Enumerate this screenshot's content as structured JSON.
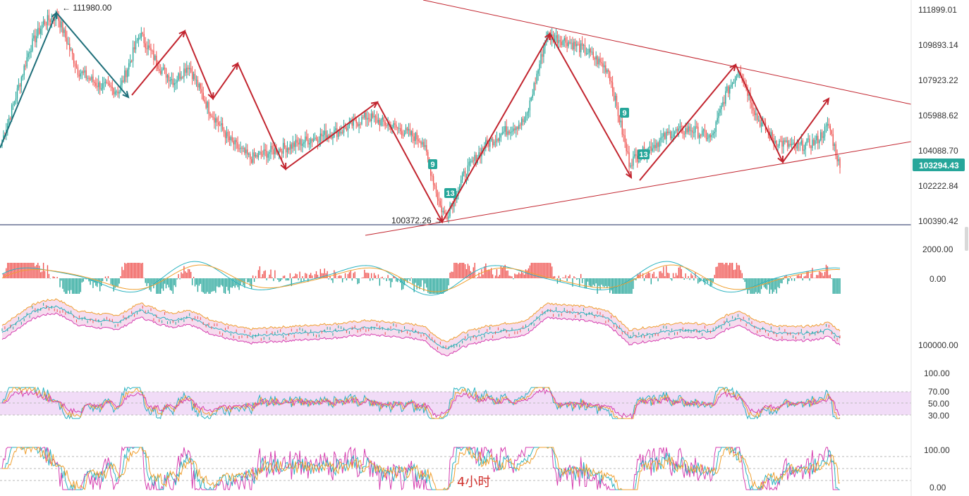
{
  "timeframe_label": "4小时",
  "colors": {
    "up": "#26a69a",
    "down": "#ef5350",
    "trend": "#c2252f",
    "wave": "#1f6f7a",
    "rsi_band": "#f1dcf7",
    "boll_fill": "#f6dcee",
    "macd_dif": "#2bb3c0",
    "macd_dea": "#f0a030",
    "line_pink": "#d63fb0",
    "line_cyan": "#2bb3c0",
    "line_orange": "#f0a030",
    "last_price_bg": "#26a69a"
  },
  "price_axis": {
    "labels": [
      "111899.01",
      "109893.14",
      "107923.22",
      "105988.62",
      "104088.70",
      "102222.84",
      "100390.42"
    ],
    "last_price": "103294.43"
  },
  "annotations": {
    "high": "111980.00",
    "low": "100372.26",
    "high_prefix": "←",
    "low_suffix": "→"
  },
  "signals": [
    "9",
    "13",
    "9",
    "13"
  ],
  "macd_axis": [
    "2000.00",
    "0.00"
  ],
  "boll_axis": [
    "100000.00"
  ],
  "rsi_axis": [
    "100.00",
    "70.00",
    "50.00",
    "30.00"
  ],
  "kdj_axis": [
    "100.00",
    "0.00"
  ],
  "chart_data": [
    {
      "type": "candlestick",
      "title": "",
      "y_ticks": [
        111899.01,
        109893.14,
        107923.22,
        105988.62,
        104088.7,
        102222.84,
        100390.42
      ],
      "ylim": [
        99900,
        112400
      ],
      "last_price": 103294.43,
      "high": 111980.0,
      "low": 100372.26,
      "trendlines": "descending resistance from top-left to right; ascending support from low to right (triangle)",
      "close_waypoints": [
        [
          0,
          104800
        ],
        [
          10,
          107200
        ],
        [
          20,
          109800
        ],
        [
          30,
          111200
        ],
        [
          40,
          111600
        ],
        [
          55,
          108600
        ],
        [
          70,
          107800
        ],
        [
          85,
          107500
        ],
        [
          100,
          110600
        ],
        [
          115,
          108700
        ],
        [
          125,
          108000
        ],
        [
          135,
          108900
        ],
        [
          150,
          106500
        ],
        [
          165,
          104800
        ],
        [
          180,
          103800
        ],
        [
          195,
          104200
        ],
        [
          210,
          104500
        ],
        [
          225,
          104900
        ],
        [
          245,
          105300
        ],
        [
          265,
          106100
        ],
        [
          285,
          105500
        ],
        [
          305,
          104800
        ],
        [
          318,
          101200
        ],
        [
          322,
          100600
        ],
        [
          335,
          102900
        ],
        [
          350,
          104500
        ],
        [
          365,
          105300
        ],
        [
          380,
          105900
        ],
        [
          395,
          110500
        ],
        [
          410,
          110200
        ],
        [
          425,
          109600
        ],
        [
          440,
          108600
        ],
        [
          455,
          103600
        ],
        [
          470,
          104400
        ],
        [
          485,
          105200
        ],
        [
          500,
          105400
        ],
        [
          515,
          104900
        ],
        [
          525,
          107300
        ],
        [
          535,
          108700
        ],
        [
          548,
          106000
        ],
        [
          560,
          104800
        ],
        [
          575,
          104400
        ],
        [
          590,
          104700
        ],
        [
          600,
          105600
        ],
        [
          608,
          103300
        ]
      ]
    },
    {
      "type": "bar",
      "title": "",
      "y_ticks": [
        2000.0,
        0.0
      ],
      "note": "MACD histogram with DIF/DEA lines"
    },
    {
      "type": "line",
      "title": "",
      "y_ticks": [
        100000.0
      ],
      "note": "Bollinger band overlay"
    },
    {
      "type": "line",
      "title": "",
      "y_ticks": [
        100.0,
        70.0,
        50.0,
        30.0
      ],
      "note": "RSI (3 lines) with 30–70 band"
    },
    {
      "type": "line",
      "title": "",
      "y_ticks": [
        100.0,
        0.0
      ],
      "note": "KDJ (3 lines)"
    }
  ]
}
